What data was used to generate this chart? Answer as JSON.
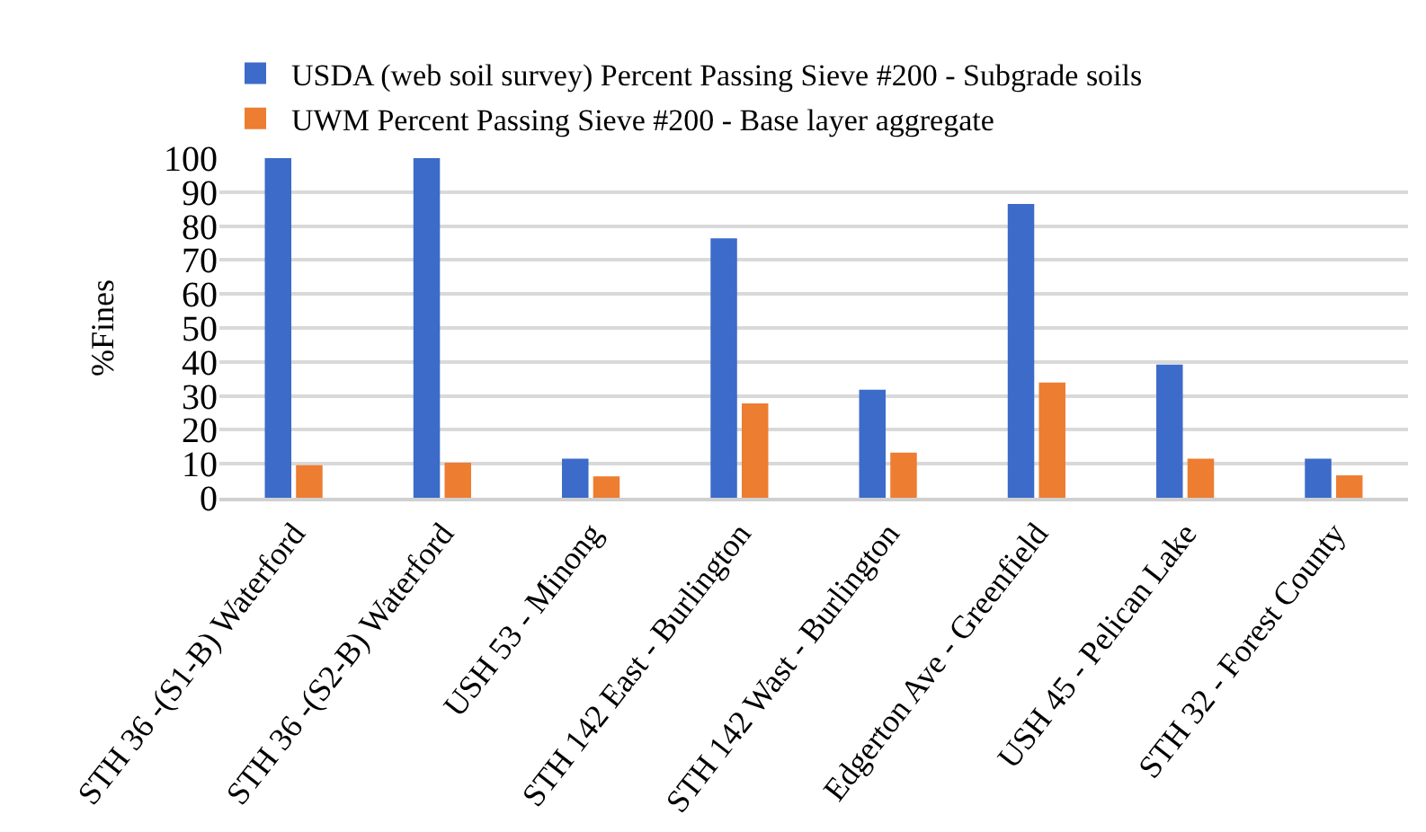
{
  "chart_data": {
    "type": "bar",
    "ylabel": "%Fines",
    "categories": [
      "STH 36 -(S1-B) Waterford",
      "STH 36 -(S2-B) Waterford",
      "USH 53 - Minong",
      "STH 142 East - Burlington",
      "STH 142 Wast - Burlington",
      "Edgerton Ave - Greenfield",
      "USH 45 - Pelican Lake",
      "STH 32 - Forest County"
    ],
    "series": [
      {
        "name": "USDA (web soil survey) Percent Passing Sieve #200 - Subgrade soils",
        "color": "#3c6bc9",
        "values": [
          100,
          100,
          11.5,
          76.4,
          31.8,
          86.5,
          39.2,
          11.5
        ]
      },
      {
        "name": "UWM Percent Passing Sieve #200 - Base layer aggregate",
        "color": "#ed7d31",
        "values": [
          9.6,
          10.3,
          6.3,
          27.8,
          13.3,
          33.9,
          11.5,
          6.6
        ]
      }
    ],
    "ylim": [
      0,
      100
    ],
    "yticks": [
      0,
      10,
      20,
      30,
      40,
      50,
      60,
      70,
      80,
      90,
      100
    ],
    "grid": "y",
    "legend": "top left"
  }
}
